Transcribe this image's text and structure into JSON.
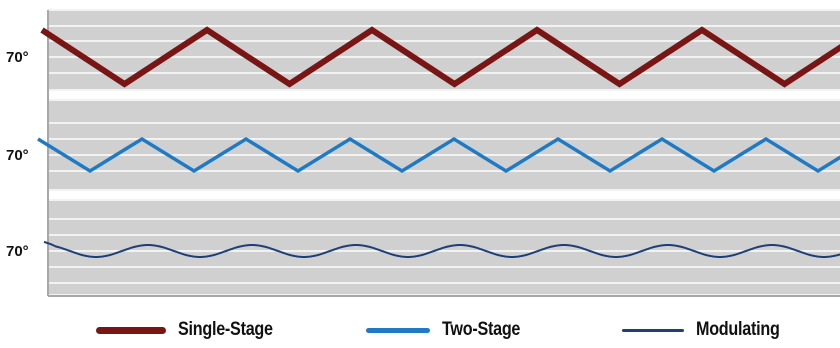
{
  "chart_data": {
    "type": "line",
    "title": "",
    "xlabel": "",
    "ylabel": "",
    "grid": true,
    "legend_placement": "bottom",
    "panels": [
      {
        "name": "Single-Stage",
        "y_tick_label": "70°",
        "color": "#7a1515",
        "waveform": "triangle",
        "cycles": 5,
        "amplitude": "large"
      },
      {
        "name": "Two-Stage",
        "y_tick_label": "70°",
        "color": "#1f7ac6",
        "waveform": "triangle",
        "cycles": 8,
        "amplitude": "medium"
      },
      {
        "name": "Modulating",
        "y_tick_label": "70°",
        "color": "#1d3f7a",
        "waveform": "sine",
        "cycles": 8,
        "amplitude": "small"
      }
    ],
    "series": [
      {
        "name": "Single-Stage",
        "color": "#7a1515"
      },
      {
        "name": "Two-Stage",
        "color": "#1f7ac6"
      },
      {
        "name": "Modulating",
        "color": "#1d3f7a"
      }
    ]
  },
  "colors": {
    "plot_background": "#d0d0d0",
    "grid_line": "#f2f2f2",
    "axis_line": "#a8a8a8"
  }
}
